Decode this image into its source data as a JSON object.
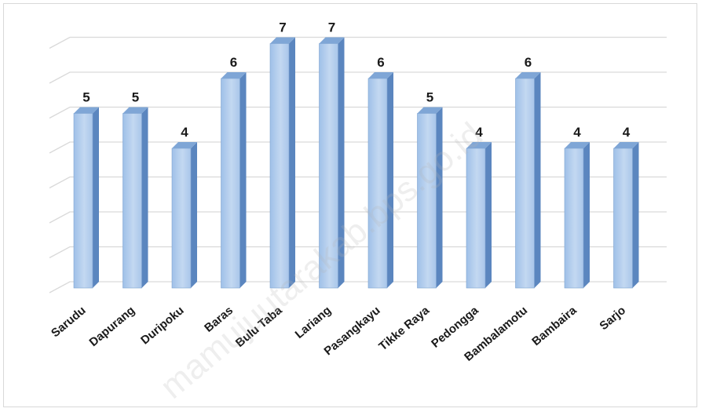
{
  "chart_data": {
    "type": "bar",
    "categories": [
      "Sarudu",
      "Dapurang",
      "Duripoku",
      "Baras",
      "Bulu Taba",
      "Lariang",
      "Pasangkayu",
      "Tikke Raya",
      "Pedongga",
      "Bambalamotu",
      "Bambaira",
      "Sarjo"
    ],
    "values": [
      5,
      5,
      4,
      6,
      7,
      7,
      6,
      5,
      4,
      6,
      4,
      4
    ],
    "data_labels": [
      "5",
      "5",
      "4",
      "6",
      "7",
      "7",
      "6",
      "5",
      "4",
      "6",
      "4",
      "4"
    ],
    "title": "",
    "xlabel": "",
    "ylabel": "",
    "ylim": [
      0,
      7
    ],
    "y_ticks_shown": false,
    "grid": true,
    "legend": "none",
    "bar_style": "3d"
  },
  "colors": {
    "bar_front_top": "#c8dcf2",
    "bar_front_bottom": "#8db3e2",
    "bar_side": "#5b86bf",
    "bar_top": "#7fa6d6",
    "gridline": "#d9d9d9",
    "text": "#1a1a1a"
  },
  "watermark": "mamujuutarakab.bps.go.id"
}
